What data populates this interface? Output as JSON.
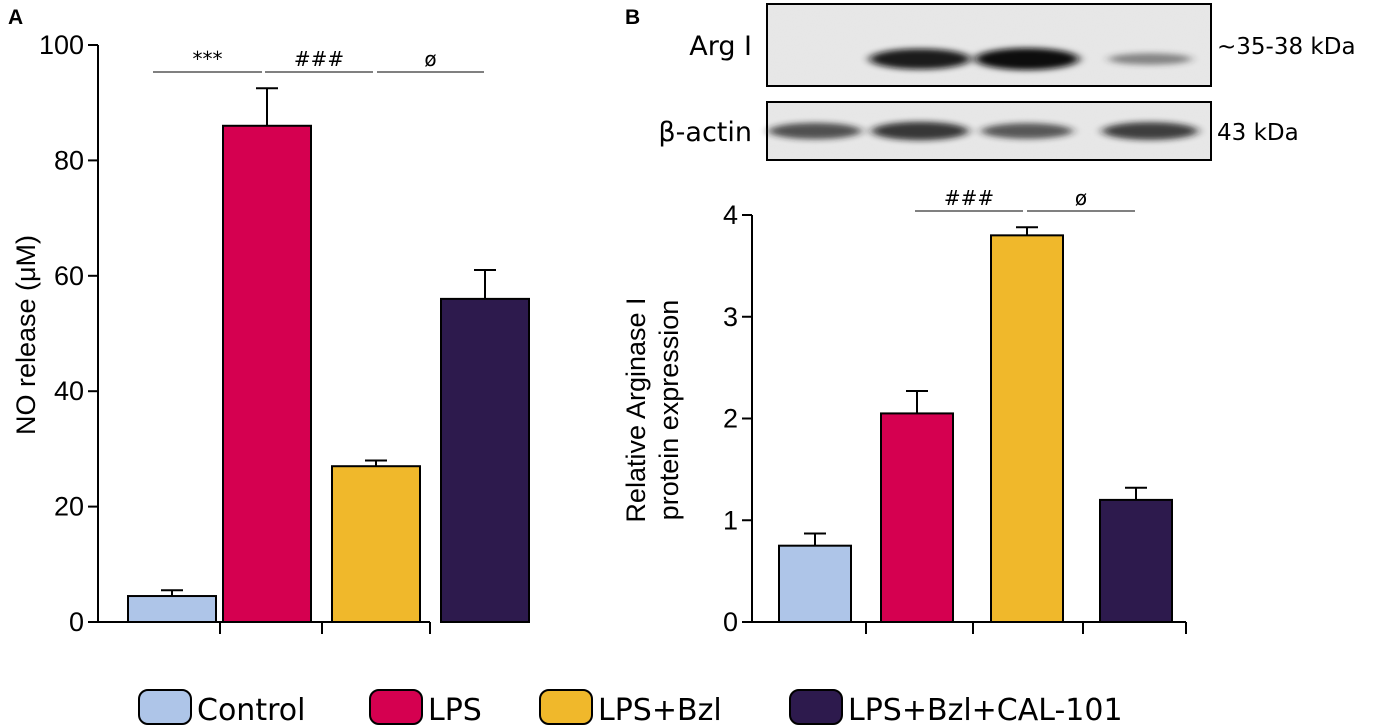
{
  "categories": [
    "Control",
    "LPS",
    "LPS+Bzl",
    "LPS+Bzl+CAL-101"
  ],
  "colors": [
    "#aec5e8",
    "#d50050",
    "#f0b82b",
    "#2d1a4d"
  ],
  "chart_data": [
    {
      "type": "bar",
      "panel": "A",
      "categories": [
        "Control",
        "LPS",
        "LPS+Bzl",
        "LPS+Bzl+CAL-101"
      ],
      "values": [
        4.5,
        86,
        27,
        56
      ],
      "errors": [
        1,
        6.5,
        1,
        5
      ],
      "ylabel": "NO release (μM)",
      "ylim": [
        0,
        100
      ],
      "yticks": [
        "0",
        "20",
        "40",
        "60",
        "80",
        "100"
      ],
      "significance": [
        {
          "from": 0,
          "to": 1,
          "label": "***"
        },
        {
          "from": 1,
          "to": 2,
          "label": "###"
        },
        {
          "from": 2,
          "to": 3,
          "label": "ø"
        }
      ]
    },
    {
      "type": "bar",
      "panel": "B",
      "categories": [
        "Control",
        "LPS",
        "LPS+Bzl",
        "LPS+Bzl+CAL-101"
      ],
      "values": [
        0.75,
        2.05,
        3.8,
        1.2
      ],
      "errors": [
        0.12,
        0.22,
        0.08,
        0.12
      ],
      "ylabel": [
        "Relative Arginase I",
        "protein expression"
      ],
      "ylim": [
        0,
        4
      ],
      "yticks": [
        "0",
        "1",
        "2",
        "3",
        "4"
      ],
      "significance": [
        {
          "from": 1,
          "to": 2,
          "label": "###"
        },
        {
          "from": 2,
          "to": 3,
          "label": "ø"
        }
      ]
    }
  ],
  "blot": {
    "rows": [
      {
        "label": "Arg I",
        "size": "~35-38 kDa",
        "intensity": [
          0,
          0.9,
          1.0,
          0.25
        ]
      },
      {
        "label": "β-actin",
        "size": "43 kDa",
        "intensity": [
          0.6,
          0.75,
          0.55,
          0.7
        ]
      }
    ]
  },
  "legend": [
    "Control",
    "LPS",
    "LPS+Bzl",
    "LPS+Bzl+CAL-101"
  ],
  "panel_labels": [
    "A",
    "B"
  ]
}
